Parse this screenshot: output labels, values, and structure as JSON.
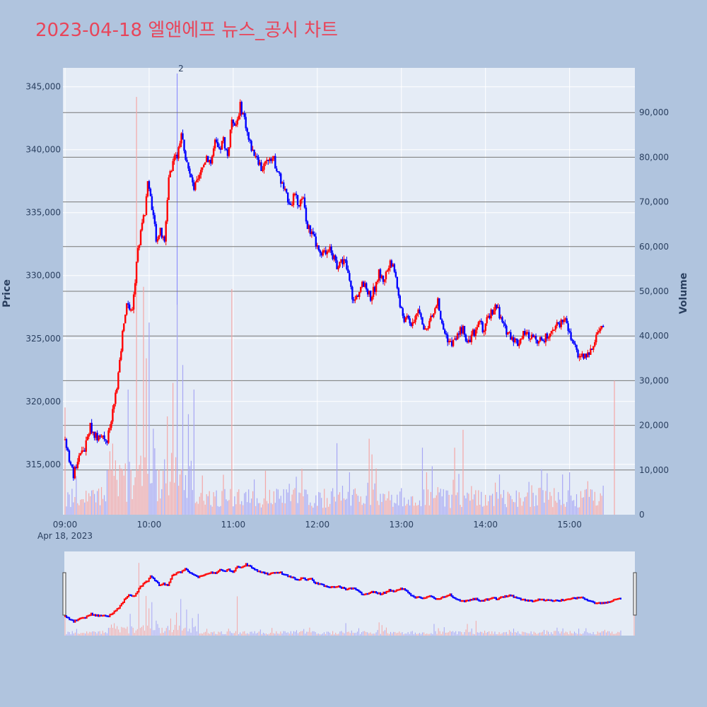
{
  "title": "2023-04-18 엘앤에프 뉴스_공시 차트",
  "colors": {
    "up": "#ff0000",
    "down": "#0000ff",
    "up_volume": "#f4a7a7",
    "down_volume": "#a7a7f4",
    "plot_bg": "#e5ecf6",
    "page_bg": "#b0c4de",
    "title": "#e8455a"
  },
  "chart_data": {
    "type": "candlestick",
    "y_axis": {
      "title": "Price",
      "range": [
        311000,
        346500
      ],
      "ticks": [
        315000,
        320000,
        325000,
        330000,
        335000,
        340000,
        345000
      ],
      "tick_labels": [
        "315,000",
        "320,000",
        "325,000",
        "330,000",
        "335,000",
        "340,000",
        "345,000"
      ]
    },
    "y2_axis": {
      "title": "Volume",
      "range": [
        0,
        100000
      ],
      "ticks": [
        0,
        10000,
        20000,
        30000,
        40000,
        50000,
        60000,
        70000,
        80000,
        90000
      ],
      "tick_labels": [
        "0",
        "10,000",
        "20,000",
        "30,000",
        "40,000",
        "50,000",
        "60,000",
        "70,000",
        "80,000",
        "90,000"
      ]
    },
    "x_axis": {
      "range_minutes": [
        540,
        935
      ],
      "ticks": [
        540,
        600,
        660,
        720,
        780,
        840,
        900
      ],
      "tick_labels": [
        "09:00",
        "10:00",
        "11:00",
        "12:00",
        "13:00",
        "14:00",
        "15:00"
      ],
      "date_label": "Apr 18, 2023"
    },
    "annotation": {
      "text": "2",
      "time": "10:20"
    },
    "price_path": [
      [
        "09:00",
        317000
      ],
      [
        "09:03",
        315500
      ],
      [
        "09:06",
        314000
      ],
      [
        "09:10",
        315800
      ],
      [
        "09:14",
        316200
      ],
      [
        "09:18",
        318000
      ],
      [
        "09:22",
        317200
      ],
      [
        "09:26",
        317500
      ],
      [
        "09:30",
        316800
      ],
      [
        "09:33",
        318500
      ],
      [
        "09:36",
        320500
      ],
      [
        "09:39",
        323000
      ],
      [
        "09:42",
        326500
      ],
      [
        "09:45",
        328000
      ],
      [
        "09:48",
        327000
      ],
      [
        "09:51",
        331000
      ],
      [
        "09:54",
        333500
      ],
      [
        "09:57",
        335000
      ],
      [
        "09:59",
        337500
      ],
      [
        "10:02",
        335500
      ],
      [
        "10:05",
        333000
      ],
      [
        "10:08",
        333500
      ],
      [
        "10:11",
        332500
      ],
      [
        "10:14",
        338000
      ],
      [
        "10:17",
        339000
      ],
      [
        "10:20",
        339500
      ],
      [
        "10:23",
        341500
      ],
      [
        "10:26",
        339500
      ],
      [
        "10:29",
        338000
      ],
      [
        "10:32",
        337000
      ],
      [
        "10:35",
        337500
      ],
      [
        "10:38",
        338500
      ],
      [
        "10:41",
        339500
      ],
      [
        "10:44",
        339000
      ],
      [
        "10:47",
        340500
      ],
      [
        "10:50",
        339800
      ],
      [
        "10:53",
        340800
      ],
      [
        "10:56",
        339500
      ],
      [
        "10:59",
        342500
      ],
      [
        "11:02",
        342000
      ],
      [
        "11:05",
        343500
      ],
      [
        "11:08",
        342500
      ],
      [
        "11:11",
        340800
      ],
      [
        "11:14",
        339800
      ],
      [
        "11:17",
        339500
      ],
      [
        "11:20",
        338500
      ],
      [
        "11:23",
        338800
      ],
      [
        "11:26",
        339500
      ],
      [
        "11:29",
        339200
      ],
      [
        "11:32",
        338200
      ],
      [
        "11:35",
        337200
      ],
      [
        "11:38",
        336300
      ],
      [
        "11:41",
        335800
      ],
      [
        "11:44",
        336300
      ],
      [
        "11:47",
        335800
      ],
      [
        "11:50",
        336000
      ],
      [
        "11:53",
        334000
      ],
      [
        "11:56",
        333300
      ],
      [
        "11:59",
        332500
      ],
      [
        "12:02",
        331500
      ],
      [
        "12:05",
        331800
      ],
      [
        "12:08",
        332300
      ],
      [
        "12:11",
        331500
      ],
      [
        "12:14",
        330800
      ],
      [
        "12:17",
        331200
      ],
      [
        "12:20",
        331000
      ],
      [
        "12:23",
        329500
      ],
      [
        "12:26",
        327800
      ],
      [
        "12:29",
        328600
      ],
      [
        "12:32",
        329200
      ],
      [
        "12:35",
        329000
      ],
      [
        "12:38",
        328200
      ],
      [
        "12:41",
        329000
      ],
      [
        "12:44",
        330200
      ],
      [
        "12:47",
        329600
      ],
      [
        "12:50",
        330500
      ],
      [
        "12:53",
        331000
      ],
      [
        "12:56",
        330000
      ],
      [
        "12:59",
        327500
      ],
      [
        "13:02",
        326500
      ],
      [
        "13:05",
        326500
      ],
      [
        "13:08",
        326000
      ],
      [
        "13:11",
        327200
      ],
      [
        "13:14",
        326600
      ],
      [
        "13:17",
        325500
      ],
      [
        "13:20",
        326300
      ],
      [
        "13:23",
        327000
      ],
      [
        "13:26",
        328000
      ],
      [
        "13:29",
        326000
      ],
      [
        "13:32",
        325200
      ],
      [
        "13:35",
        324600
      ],
      [
        "13:38",
        324800
      ],
      [
        "13:41",
        325400
      ],
      [
        "13:44",
        325900
      ],
      [
        "13:47",
        324800
      ],
      [
        "13:50",
        325100
      ],
      [
        "13:53",
        325800
      ],
      [
        "13:56",
        326200
      ],
      [
        "13:59",
        325500
      ],
      [
        "14:02",
        326800
      ],
      [
        "14:05",
        327200
      ],
      [
        "14:08",
        327600
      ],
      [
        "14:11",
        326500
      ],
      [
        "14:14",
        325700
      ],
      [
        "14:17",
        325400
      ],
      [
        "14:20",
        325000
      ],
      [
        "14:23",
        324600
      ],
      [
        "14:26",
        325200
      ],
      [
        "14:29",
        325400
      ],
      [
        "14:32",
        325000
      ],
      [
        "14:35",
        325300
      ],
      [
        "14:38",
        324700
      ],
      [
        "14:41",
        324900
      ],
      [
        "14:44",
        325200
      ],
      [
        "14:47",
        325800
      ],
      [
        "14:50",
        325900
      ],
      [
        "14:53",
        326200
      ],
      [
        "14:56",
        326700
      ],
      [
        "14:59",
        325600
      ],
      [
        "15:02",
        324600
      ],
      [
        "15:05",
        324000
      ],
      [
        "15:08",
        323400
      ],
      [
        "15:11",
        323800
      ],
      [
        "15:14",
        323600
      ],
      [
        "15:17",
        324400
      ],
      [
        "15:20",
        325300
      ],
      [
        "15:23",
        325900
      ]
    ],
    "volume_spikes": [
      [
        "09:51",
        93500
      ],
      [
        "09:56",
        51000
      ],
      [
        "10:00",
        43000
      ],
      [
        "10:17",
        29500
      ],
      [
        "10:20",
        47000
      ],
      [
        "10:24",
        33500
      ],
      [
        "10:32",
        28000
      ],
      [
        "10:59",
        50500
      ],
      [
        "10:28",
        22500
      ],
      [
        "09:45",
        28000
      ],
      [
        "09:58",
        35000
      ],
      [
        "10:13",
        22000
      ],
      [
        "11:45",
        8500
      ],
      [
        "12:14",
        16000
      ],
      [
        "12:37",
        17000
      ],
      [
        "12:39",
        13500
      ],
      [
        "13:15",
        15000
      ],
      [
        "13:38",
        15000
      ],
      [
        "13:44",
        19000
      ],
      [
        "14:10",
        9000
      ],
      [
        "14:55",
        9000
      ],
      [
        "15:00",
        9500
      ],
      [
        "15:24",
        6500
      ],
      [
        "15:13",
        7500
      ],
      [
        "09:00",
        24000
      ],
      [
        "09:33",
        10000
      ],
      [
        "15:32",
        30000
      ]
    ]
  }
}
